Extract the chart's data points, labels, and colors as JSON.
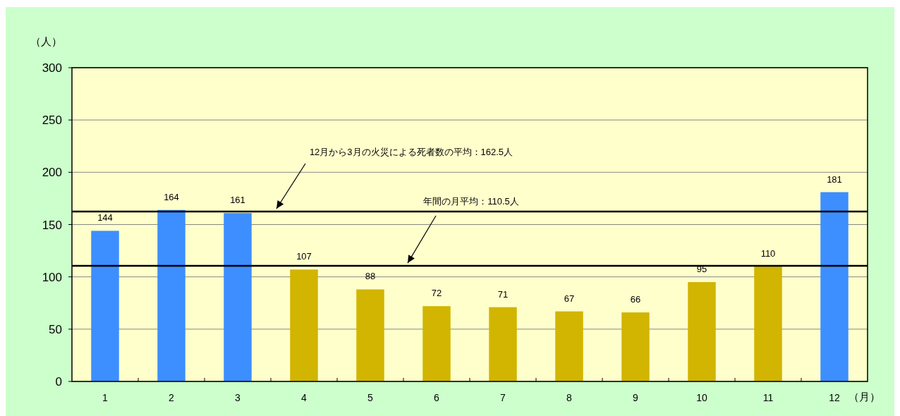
{
  "chart_data": {
    "type": "bar",
    "categories": [
      "1",
      "2",
      "3",
      "4",
      "5",
      "6",
      "7",
      "8",
      "9",
      "10",
      "11",
      "12"
    ],
    "values": [
      144,
      164,
      161,
      107,
      88,
      72,
      71,
      67,
      66,
      95,
      110,
      181
    ],
    "colors": [
      "#3d8eff",
      "#3d8eff",
      "#3d8eff",
      "#d1b500",
      "#d1b500",
      "#d1b500",
      "#d1b500",
      "#d1b500",
      "#d1b500",
      "#d1b500",
      "#d1b500",
      "#3d8eff"
    ],
    "ylim": [
      0,
      300
    ],
    "yticks": [
      0,
      50,
      100,
      150,
      200,
      250,
      300
    ],
    "grid": "y",
    "data_labels": true,
    "ylabel": "（人）",
    "xlabel": "（月）",
    "ref_lines": [
      {
        "axis": "y",
        "value": 162.5,
        "label": "12月から3月の火災による死者数の平均：162.5人",
        "color": "#000000"
      },
      {
        "axis": "y",
        "value": 110.5,
        "label": "年間の月平均：110.5人",
        "color": "#000000"
      }
    ]
  }
}
